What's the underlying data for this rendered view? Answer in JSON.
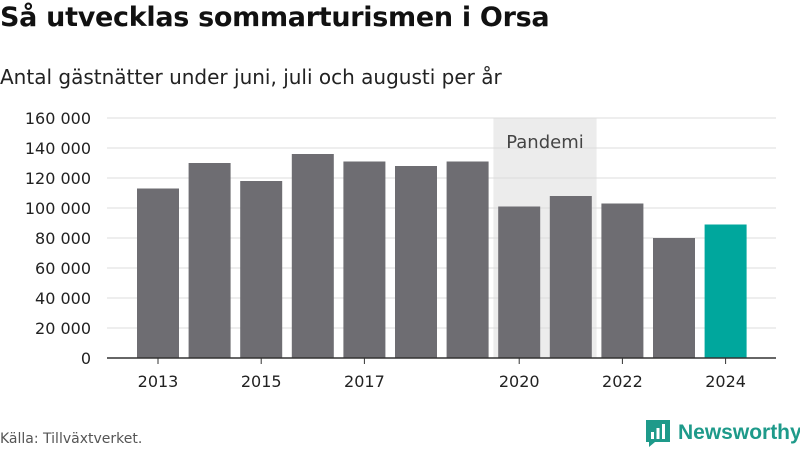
{
  "title": "Så utvecklas sommarturismen i Orsa",
  "subtitle": "Antal gästnätter under juni, juli och augusti per år",
  "source": "Källa: Tillväxtverket.",
  "brand": {
    "name": "Newsworthy",
    "icon": "newsworthy-logo-icon",
    "color": "#1e9a8a"
  },
  "chart_data": {
    "type": "bar",
    "categories": [
      "2013",
      "2014",
      "2015",
      "2016",
      "2017",
      "2018",
      "2019",
      "2020",
      "2021",
      "2022",
      "2023",
      "2024"
    ],
    "values": [
      113000,
      130000,
      118000,
      136000,
      131000,
      128000,
      131000,
      101000,
      108000,
      103000,
      80000,
      89000
    ],
    "x_tick_labels": [
      "2013",
      "2015",
      "2017",
      "2020",
      "2022",
      "2024"
    ],
    "y_ticks": [
      0,
      20000,
      40000,
      60000,
      80000,
      100000,
      120000,
      140000,
      160000
    ],
    "y_tick_labels": [
      "0",
      "20 000",
      "40 000",
      "60 000",
      "80 000",
      "100 000",
      "120 000",
      "140 000",
      "160 000"
    ],
    "ylim": [
      0,
      160000
    ],
    "grid": true,
    "bar_color": "#6e6d72",
    "highlight": {
      "category": "2024",
      "color": "#00a79d"
    },
    "annotation": {
      "label": "Pandemi",
      "from": "2020",
      "to": "2021",
      "color": "#ececec"
    },
    "xlabel": "",
    "ylabel": ""
  }
}
